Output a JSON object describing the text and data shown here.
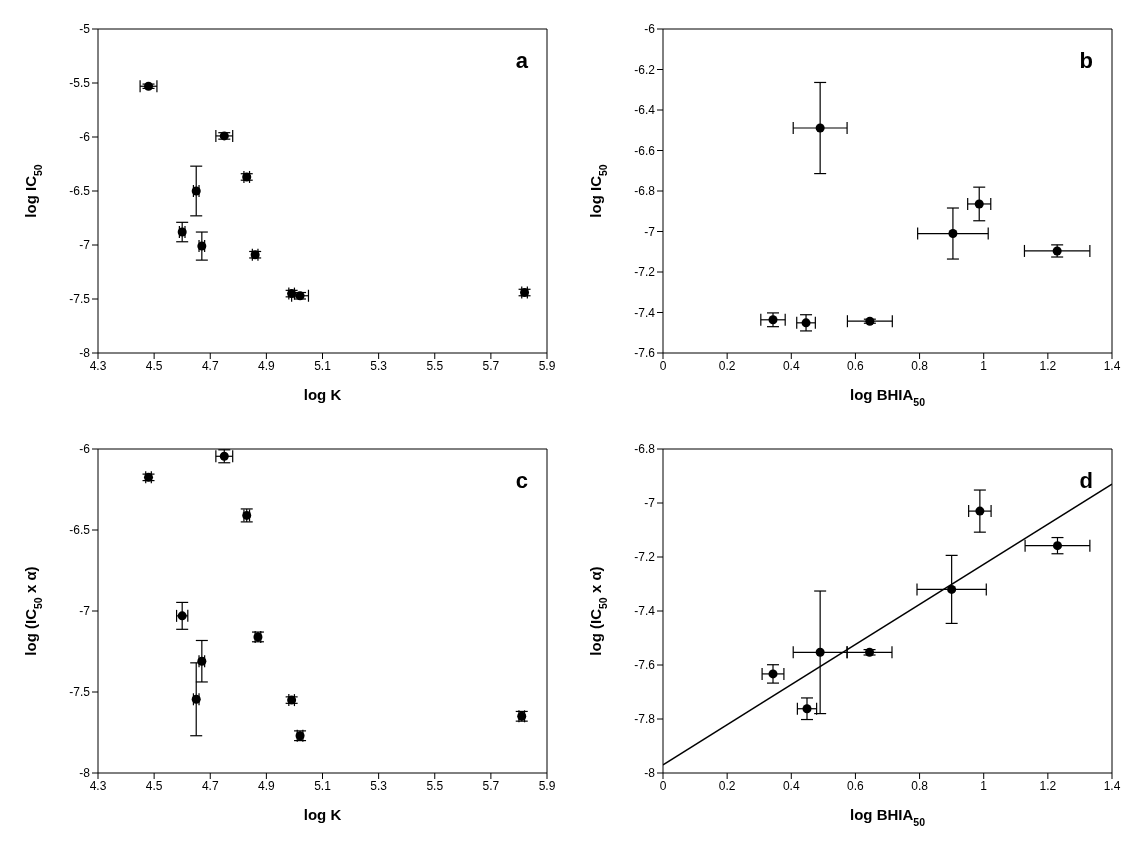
{
  "chart_data": [
    {
      "type": "scatter",
      "xlabel": "log K",
      "ylabel": "log IC$_{50}$",
      "annotations": [
        "a"
      ],
      "marker": "circle",
      "xlim": [
        4.3,
        5.9
      ],
      "xticks": [
        4.3,
        4.5,
        4.7,
        4.9,
        5.1,
        5.3,
        5.5,
        5.7,
        5.9
      ],
      "ylim": [
        -8,
        -5
      ],
      "yticks": [
        -8,
        -7.5,
        -7,
        -6.5,
        -6,
        -5.5,
        -5
      ],
      "series": [
        {
          "color": "#000000",
          "x": [
            4.48,
            4.75,
            4.83,
            4.65,
            4.6,
            4.67,
            4.86,
            4.99,
            5.02,
            5.82
          ],
          "values": [
            -5.53,
            -5.99,
            -6.37,
            -6.5,
            -6.88,
            -7.01,
            -7.09,
            -7.45,
            -7.47,
            -7.44
          ],
          "errors": [
            0.02,
            0.03,
            0.03,
            0.23,
            0.09,
            0.13,
            0.03,
            0.03,
            0.03,
            0.03
          ],
          "xerrors": [
            0.03,
            0.03,
            0.01,
            0.01,
            0.01,
            0.01,
            0.01,
            0.01,
            0.03,
            0.01
          ]
        }
      ]
    },
    {
      "type": "scatter",
      "xlabel": "log BHIA$_{50}$",
      "ylabel": "log IC$_{50}$",
      "annotations": [
        "b"
      ],
      "marker": "circle",
      "xlim": [
        0,
        1.4
      ],
      "xticks": [
        0,
        0.2,
        0.4,
        0.6,
        0.8,
        1,
        1.2,
        1.4
      ],
      "ylim": [
        -7.6,
        -6
      ],
      "yticks": [
        -7.6,
        -7.4,
        -7.2,
        -7,
        -6.8,
        -6.6,
        -6.4,
        -6.2,
        -6
      ],
      "series": [
        {
          "color": "#000000",
          "x": [
            0.343,
            0.446,
            0.49,
            0.645,
            0.904,
            0.986,
            1.229
          ],
          "values": [
            -7.436,
            -7.451,
            -6.489,
            -7.443,
            -7.01,
            -6.864,
            -7.096
          ],
          "errors": [
            0.034,
            0.04,
            0.225,
            0.01,
            0.126,
            0.083,
            0.03
          ],
          "xerrors": [
            0.038,
            0.029,
            0.084,
            0.07,
            0.11,
            0.036,
            0.102
          ]
        }
      ]
    },
    {
      "type": "scatter",
      "xlabel": "log K",
      "ylabel": "log (IC$_{50}$ x α)",
      "annotations": [
        "c"
      ],
      "marker": "circle",
      "xlim": [
        4.3,
        5.9
      ],
      "xticks": [
        4.3,
        4.5,
        4.7,
        4.9,
        5.1,
        5.3,
        5.5,
        5.7,
        5.9
      ],
      "ylim": [
        -8,
        -6
      ],
      "yticks": [
        -8,
        -7.5,
        -7,
        -6.5,
        -6
      ],
      "series": [
        {
          "color": "#000000",
          "x": [
            4.48,
            4.75,
            4.83,
            4.6,
            4.67,
            4.65,
            4.87,
            4.99,
            5.02,
            5.81
          ],
          "values": [
            -6.175,
            -6.045,
            -6.41,
            -7.03,
            -7.31,
            -7.545,
            -7.16,
            -7.55,
            -7.77,
            -7.65
          ],
          "errors": [
            0.02,
            0.04,
            0.04,
            0.083,
            0.128,
            0.225,
            0.03,
            0.02,
            0.03,
            0.03
          ],
          "xerrors": [
            0.01,
            0.03,
            0.01,
            0.02,
            0.01,
            0.01,
            0.01,
            0.01,
            0.01,
            0.01
          ]
        }
      ]
    },
    {
      "type": "scatter",
      "xlabel": "log BHIA$_{50}$",
      "ylabel": "log (IC$_{50}$ x α)",
      "annotations": [
        "d"
      ],
      "marker": "circle",
      "xlim": [
        0,
        1.4
      ],
      "xticks": [
        0,
        0.2,
        0.4,
        0.6,
        0.8,
        1,
        1.2,
        1.4
      ],
      "ylim": [
        -8,
        -6.8
      ],
      "yticks": [
        -8,
        -7.8,
        -7.6,
        -7.4,
        -7.2,
        -7,
        -6.8
      ],
      "series": [
        {
          "color": "#000000",
          "x": [
            0.343,
            0.449,
            0.49,
            0.644,
            0.9,
            0.988,
            1.23
          ],
          "values": [
            -7.633,
            -7.762,
            -7.553,
            -7.553,
            -7.32,
            -7.03,
            -7.158
          ],
          "errors": [
            0.034,
            0.04,
            0.227,
            0.01,
            0.126,
            0.078,
            0.03
          ],
          "xerrors": [
            0.034,
            0.03,
            0.084,
            0.07,
            0.108,
            0.035,
            0.101
          ]
        },
        {
          "type": "line",
          "marker": "none",
          "color": "#000000",
          "x": [
            0,
            1.4
          ],
          "values": [
            -7.97,
            -6.93
          ]
        }
      ]
    }
  ]
}
